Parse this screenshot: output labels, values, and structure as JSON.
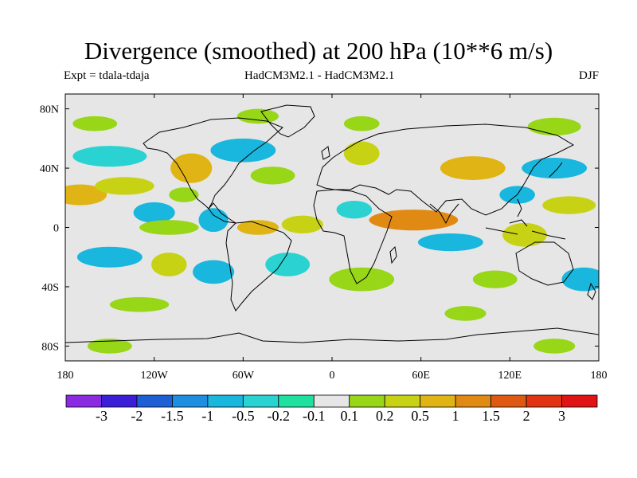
{
  "title": "Divergence (smoothed) at 200 hPa (10**6 m/s)",
  "expt_label": "Expt = tdala-tdaja",
  "model_label": "HadCM3M2.1 - HadCM3M2.1",
  "season_label": "DJF",
  "chart_data": {
    "type": "heatmap",
    "projection": "equirectangular",
    "lon_range": [
      -180,
      180
    ],
    "lat_range": [
      -90,
      90
    ],
    "x_ticks": [
      {
        "lon": -180,
        "label": "180"
      },
      {
        "lon": -120,
        "label": "120W"
      },
      {
        "lon": -60,
        "label": "60W"
      },
      {
        "lon": 0,
        "label": "0"
      },
      {
        "lon": 60,
        "label": "60E"
      },
      {
        "lon": 120,
        "label": "120E"
      },
      {
        "lon": 180,
        "label": "180"
      }
    ],
    "y_ticks": [
      {
        "lat": 80,
        "label": "80N"
      },
      {
        "lat": 40,
        "label": "40N"
      },
      {
        "lat": 0,
        "label": "0"
      },
      {
        "lat": -40,
        "label": "40S"
      },
      {
        "lat": -80,
        "label": "80S"
      }
    ],
    "levels": [
      "-3",
      "-2",
      "-1.5",
      "-1",
      "-0.5",
      "-0.2",
      "-0.1",
      "0.1",
      "0.2",
      "0.5",
      "1",
      "1.5",
      "2",
      "3"
    ],
    "colors": [
      "#8a2be2",
      "#3a1fd6",
      "#1f5fd6",
      "#1e8ee0",
      "#19b6de",
      "#2ad2d2",
      "#1fe09e",
      "#e6e6e6",
      "#98d618",
      "#c8d214",
      "#e0b414",
      "#e08a14",
      "#de5a12",
      "#e03412",
      "#e01414"
    ],
    "background_color": "#e6e6e6",
    "regions": [
      {
        "lon": -170,
        "lat": 22,
        "rlon": 18,
        "rlat": 7,
        "level": 1
      },
      {
        "lon": -140,
        "lat": 28,
        "rlon": 20,
        "rlat": 6,
        "level": 0.5
      },
      {
        "lon": -150,
        "lat": 48,
        "rlon": 25,
        "rlat": 7,
        "level": -0.2
      },
      {
        "lon": -95,
        "lat": 40,
        "rlon": 14,
        "rlat": 10,
        "level": 1
      },
      {
        "lon": -120,
        "lat": 10,
        "rlon": 14,
        "rlat": 7,
        "level": -0.5
      },
      {
        "lon": -100,
        "lat": 22,
        "rlon": 10,
        "rlat": 5,
        "level": 0.2
      },
      {
        "lon": -60,
        "lat": 52,
        "rlon": 22,
        "rlat": 8,
        "level": -0.5
      },
      {
        "lon": -40,
        "lat": 35,
        "rlon": 15,
        "rlat": 6,
        "level": 0.2
      },
      {
        "lon": -110,
        "lat": 0,
        "rlon": 20,
        "rlat": 5,
        "level": 0.2
      },
      {
        "lon": -80,
        "lat": 5,
        "rlon": 10,
        "rlat": 8,
        "level": -0.5
      },
      {
        "lon": -50,
        "lat": 0,
        "rlon": 14,
        "rlat": 5,
        "level": 1
      },
      {
        "lon": -20,
        "lat": 2,
        "rlon": 14,
        "rlat": 6,
        "level": 0.5
      },
      {
        "lon": 15,
        "lat": 12,
        "rlon": 12,
        "rlat": 6,
        "level": -0.2
      },
      {
        "lon": 55,
        "lat": 5,
        "rlon": 30,
        "rlat": 7,
        "level": 1.5
      },
      {
        "lon": 95,
        "lat": 40,
        "rlon": 22,
        "rlat": 8,
        "level": 1
      },
      {
        "lon": 125,
        "lat": 22,
        "rlon": 12,
        "rlat": 6,
        "level": -0.5
      },
      {
        "lon": 150,
        "lat": 40,
        "rlon": 22,
        "rlat": 7,
        "level": -0.5
      },
      {
        "lon": 160,
        "lat": 15,
        "rlon": 18,
        "rlat": 6,
        "level": 0.5
      },
      {
        "lon": 80,
        "lat": -10,
        "rlon": 22,
        "rlat": 6,
        "level": -0.5
      },
      {
        "lon": 130,
        "lat": -5,
        "rlon": 15,
        "rlat": 8,
        "level": 0.5
      },
      {
        "lon": -150,
        "lat": -20,
        "rlon": 22,
        "rlat": 7,
        "level": -0.5
      },
      {
        "lon": -110,
        "lat": -25,
        "rlon": 12,
        "rlat": 8,
        "level": 0.5
      },
      {
        "lon": -80,
        "lat": -30,
        "rlon": 14,
        "rlat": 8,
        "level": -0.5
      },
      {
        "lon": -30,
        "lat": -25,
        "rlon": 15,
        "rlat": 8,
        "level": -0.2
      },
      {
        "lon": 20,
        "lat": -35,
        "rlon": 22,
        "rlat": 8,
        "level": 0.2
      },
      {
        "lon": 110,
        "lat": -35,
        "rlon": 15,
        "rlat": 6,
        "level": 0.2
      },
      {
        "lon": 170,
        "lat": -35,
        "rlon": 15,
        "rlat": 8,
        "level": -0.5
      },
      {
        "lon": -130,
        "lat": -52,
        "rlon": 20,
        "rlat": 5,
        "level": 0.2
      },
      {
        "lon": -150,
        "lat": -80,
        "rlon": 15,
        "rlat": 5,
        "level": 0.2
      },
      {
        "lon": 150,
        "lat": -80,
        "rlon": 14,
        "rlat": 5,
        "level": 0.2
      },
      {
        "lon": 90,
        "lat": -58,
        "rlon": 14,
        "rlat": 5,
        "level": 0.2
      },
      {
        "lon": -160,
        "lat": 70,
        "rlon": 15,
        "rlat": 5,
        "level": 0.2
      },
      {
        "lon": -50,
        "lat": 75,
        "rlon": 14,
        "rlat": 5,
        "level": 0.2
      },
      {
        "lon": 20,
        "lat": 70,
        "rlon": 12,
        "rlat": 5,
        "level": 0.2
      },
      {
        "lon": 20,
        "lat": 50,
        "rlon": 12,
        "rlat": 8,
        "level": 0.5
      },
      {
        "lon": 150,
        "lat": 68,
        "rlon": 18,
        "rlat": 6,
        "level": 0.2
      }
    ]
  }
}
